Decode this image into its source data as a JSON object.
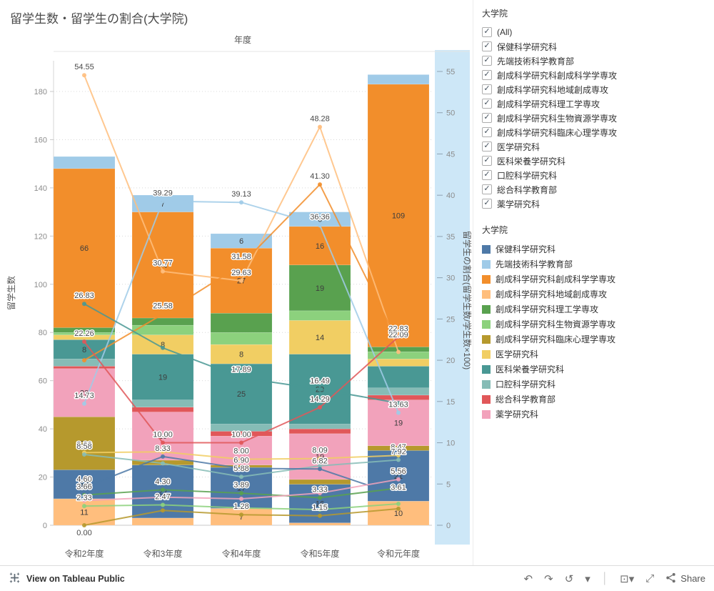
{
  "title": "留学生数・留学生の割合(大学院)",
  "chart_data": {
    "type": "bar",
    "subtype": "stacked-bar-with-lines",
    "x_axis_title": "年度",
    "categories": [
      "令和2年度",
      "令和3年度",
      "令和4年度",
      "令和5年度",
      "令和元年度"
    ],
    "left_axis": {
      "title": "留学生数",
      "min": 0,
      "max": 180,
      "tick_step": 20
    },
    "right_axis": {
      "title": "留学生の割合(留学生数/学生数×100)",
      "min": 0,
      "max": 55,
      "tick_step": 5
    },
    "bar_series": [
      {
        "name": "創成科学研究科地域創成専攻",
        "color": "#FFBE7D",
        "values": [
          11,
          3,
          7,
          1,
          10
        ],
        "labels": [
          "11",
          null,
          "7",
          null,
          "10"
        ]
      },
      {
        "name": "保健科学研究科",
        "color": "#4E79A7",
        "values": [
          12,
          22,
          17,
          16,
          21
        ],
        "labels": [
          "12",
          "22",
          "17",
          "16",
          "21"
        ]
      },
      {
        "name": "創成科学研究科臨床心理学専攻",
        "color": "#B6992D",
        "values": [
          22,
          2,
          1,
          2,
          2
        ],
        "labels": [
          "22",
          null,
          null,
          null,
          null
        ]
      },
      {
        "name": "薬学研究科",
        "color": "#F2A2BB",
        "values": [
          20,
          20,
          12,
          19,
          19
        ],
        "labels": [
          "20",
          "20",
          null,
          "19",
          "19"
        ]
      },
      {
        "name": "総合科学教育部",
        "color": "#E15759",
        "values": [
          1,
          2,
          2,
          2,
          2
        ],
        "labels": [
          null,
          null,
          null,
          null,
          null
        ]
      },
      {
        "name": "口腔科学研究科",
        "color": "#86BCB6",
        "values": [
          3,
          3,
          3,
          2,
          3
        ],
        "labels": [
          null,
          null,
          null,
          null,
          null
        ]
      },
      {
        "name": "医科栄養学研究科",
        "color": "#499894",
        "values": [
          8,
          19,
          25,
          29,
          9
        ],
        "labels": [
          "8",
          "19",
          "25",
          "29",
          null
        ]
      },
      {
        "name": "医学研究科",
        "color": "#F1CE63",
        "values": [
          2,
          8,
          8,
          14,
          3
        ],
        "labels": [
          null,
          "8",
          "8",
          "14",
          null
        ]
      },
      {
        "name": "創成科学研究科生物資源学専攻",
        "color": "#8CD17D",
        "values": [
          1,
          4,
          5,
          4,
          3
        ],
        "labels": [
          null,
          null,
          null,
          null,
          null
        ]
      },
      {
        "name": "創成科学研究科理工学専攻",
        "color": "#59A14F",
        "values": [
          2,
          3,
          8,
          19,
          2
        ],
        "labels": [
          null,
          null,
          null,
          "19",
          null
        ]
      },
      {
        "name": "創成科学研究科創成科学学専攻",
        "color": "#F28E2B",
        "values": [
          66,
          44,
          27,
          16,
          109
        ],
        "labels": [
          "66",
          "44",
          "27",
          "16",
          "109"
        ]
      },
      {
        "name": "先端技術科学教育部",
        "color": "#A0CBE8",
        "values": [
          5,
          7,
          6,
          6,
          4
        ],
        "labels": [
          null,
          "7",
          "6",
          "6",
          null
        ]
      }
    ],
    "line_series": [
      {
        "name": "創成科学研究科地域創成専攻",
        "color": "#FFBE7D",
        "values": [
          54.55,
          30.77,
          29.63,
          48.28,
          21.0
        ],
        "labels": [
          "54.55",
          "30.77",
          "29.63",
          "48.28",
          null
        ]
      },
      {
        "name": "創成科学研究科創成科学学専攻",
        "color": "#F28E2B",
        "values": [
          20.0,
          25.58,
          31.58,
          41.3,
          22.09
        ],
        "labels": [
          null,
          "25.58",
          "31.58",
          "41.30",
          "22.09"
        ]
      },
      {
        "name": "先端技術科学教育部",
        "color": "#A0CBE8",
        "values": [
          14.73,
          39.29,
          39.13,
          36.36,
          13.63
        ],
        "labels": [
          "14.73",
          "39.29",
          "39.13",
          "36.36",
          "13.63"
        ]
      },
      {
        "name": "医科栄養学研究科",
        "color": "#499894",
        "values": [
          26.83,
          21.5,
          17.89,
          16.49,
          14.8
        ],
        "labels": [
          "26.83",
          null,
          "17.89",
          "16.49",
          null
        ]
      },
      {
        "name": "総合科学教育部",
        "color": "#E15759",
        "values": [
          22.26,
          10.0,
          10.0,
          14.29,
          22.83
        ],
        "labels": [
          "22.26",
          "10.00",
          "10.00",
          "14.29",
          "22.83"
        ]
      },
      {
        "name": "医学研究科",
        "color": "#F1CE63",
        "values": [
          8.8,
          8.9,
          8.0,
          8.09,
          8.47
        ],
        "labels": [
          "8.80",
          null,
          "8.00",
          "8.09",
          "8.47"
        ]
      },
      {
        "name": "口腔科学研究科",
        "color": "#86BCB6",
        "values": [
          8.58,
          7.5,
          5.88,
          7.2,
          7.92
        ],
        "labels": [
          "8.58",
          null,
          "5.88",
          null,
          "7.92"
        ]
      },
      {
        "name": "保健科学研究科",
        "color": "#4E79A7",
        "values": [
          4.6,
          8.33,
          6.9,
          6.82,
          3.61
        ],
        "labels": [
          "4.60",
          "8.33",
          "6.90",
          "6.82",
          "3.61"
        ]
      },
      {
        "name": "創成科学研究科理工学専攻",
        "color": "#59A14F",
        "values": [
          3.66,
          4.3,
          3.89,
          3.33,
          4.5
        ],
        "labels": [
          "3.66",
          "4.30",
          "3.89",
          "3.33",
          null
        ]
      },
      {
        "name": "創成科学研究科生物資源学専攻",
        "color": "#8CD17D",
        "values": [
          2.33,
          2.47,
          2.1,
          1.9,
          2.6
        ],
        "labels": [
          "2.33",
          "2.47",
          null,
          null,
          null
        ]
      },
      {
        "name": "薬学研究科",
        "color": "#F2A2BB",
        "values": [
          3.0,
          3.4,
          3.2,
          3.9,
          5.56
        ],
        "labels": [
          null,
          null,
          null,
          null,
          "5.56"
        ]
      },
      {
        "name": "創成科学研究科臨床心理学専攻",
        "color": "#B6992D",
        "values": [
          0.0,
          1.8,
          1.28,
          1.15,
          2.0
        ],
        "labels": [
          "0.00",
          null,
          "1.28",
          "1.15",
          null
        ]
      }
    ]
  },
  "filter": {
    "title": "大学院",
    "items": [
      {
        "label": "(All)",
        "checked": true
      },
      {
        "label": "保健科学研究科",
        "checked": true
      },
      {
        "label": "先端技術科学教育部",
        "checked": true
      },
      {
        "label": "創成科学研究科創成科学学専攻",
        "checked": true
      },
      {
        "label": "創成科学研究科地域創成専攻",
        "checked": true
      },
      {
        "label": "創成科学研究科理工学専攻",
        "checked": true
      },
      {
        "label": "創成科学研究科生物資源学専攻",
        "checked": true
      },
      {
        "label": "創成科学研究科臨床心理学専攻",
        "checked": true
      },
      {
        "label": "医学研究科",
        "checked": true
      },
      {
        "label": "医科栄養学研究科",
        "checked": true
      },
      {
        "label": "口腔科学研究科",
        "checked": true
      },
      {
        "label": "総合科学教育部",
        "checked": true
      },
      {
        "label": "薬学研究科",
        "checked": true
      }
    ]
  },
  "legend": {
    "title": "大学院",
    "items": [
      {
        "label": "保健科学研究科",
        "color": "#4E79A7"
      },
      {
        "label": "先端技術科学教育部",
        "color": "#A0CBE8"
      },
      {
        "label": "創成科学研究科創成科学学専攻",
        "color": "#F28E2B"
      },
      {
        "label": "創成科学研究科地域創成専攻",
        "color": "#FFBE7D"
      },
      {
        "label": "創成科学研究科理工学専攻",
        "color": "#59A14F"
      },
      {
        "label": "創成科学研究科生物資源学専攻",
        "color": "#8CD17D"
      },
      {
        "label": "創成科学研究科臨床心理学専攻",
        "color": "#B6992D"
      },
      {
        "label": "医学研究科",
        "color": "#F1CE63"
      },
      {
        "label": "医科栄養学研究科",
        "color": "#499894"
      },
      {
        "label": "口腔科学研究科",
        "color": "#86BCB6"
      },
      {
        "label": "総合科学教育部",
        "color": "#E15759"
      },
      {
        "label": "薬学研究科",
        "color": "#F2A2BB"
      }
    ]
  },
  "toolbar": {
    "view_text": "View on Tableau Public",
    "share_label": "Share",
    "icons": [
      {
        "name": "undo-icon",
        "glyph": "↶"
      },
      {
        "name": "redo-icon",
        "glyph": "↷"
      },
      {
        "name": "reset-icon",
        "glyph": "↺"
      },
      {
        "name": "more-options-icon",
        "glyph": "▾"
      },
      {
        "name": "separator",
        "glyph": "│"
      },
      {
        "name": "device-preview-icon",
        "glyph": "⊡▾"
      },
      {
        "name": "fullscreen-icon",
        "glyph": "⤢"
      }
    ]
  }
}
